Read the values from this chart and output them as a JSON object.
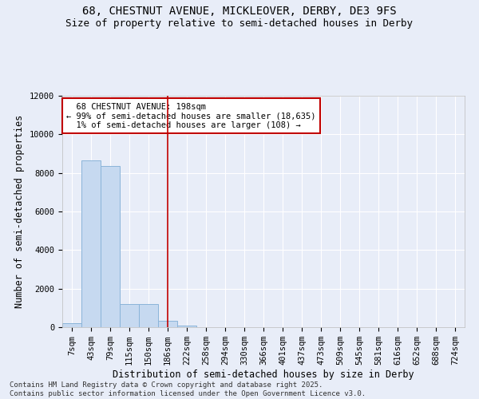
{
  "title_line1": "68, CHESTNUT AVENUE, MICKLEOVER, DERBY, DE3 9FS",
  "title_line2": "Size of property relative to semi-detached houses in Derby",
  "xlabel": "Distribution of semi-detached houses by size in Derby",
  "ylabel": "Number of semi-detached properties",
  "footer_line1": "Contains HM Land Registry data © Crown copyright and database right 2025.",
  "footer_line2": "Contains public sector information licensed under the Open Government Licence v3.0.",
  "categories": [
    "7sqm",
    "43sqm",
    "79sqm",
    "115sqm",
    "150sqm",
    "186sqm",
    "222sqm",
    "258sqm",
    "294sqm",
    "330sqm",
    "366sqm",
    "401sqm",
    "437sqm",
    "473sqm",
    "509sqm",
    "545sqm",
    "581sqm",
    "616sqm",
    "652sqm",
    "688sqm",
    "724sqm"
  ],
  "values": [
    200,
    8650,
    8350,
    1200,
    1200,
    350,
    100,
    0,
    0,
    0,
    0,
    0,
    0,
    0,
    0,
    0,
    0,
    0,
    0,
    0,
    0
  ],
  "bar_color": "#c6d9f0",
  "bar_edge_color": "#8ab4d9",
  "annotation_line1": "  68 CHESTNUT AVENUE: 198sqm  ",
  "annotation_line2": "← 99% of semi-detached houses are smaller (18,635)",
  "annotation_line3": "  1% of semi-detached houses are larger (108) →",
  "vline_x_index": 5.0,
  "vline_color": "#c00000",
  "annotation_box_color": "#c00000",
  "annotation_box_facecolor": "#ffffff",
  "ylim": [
    0,
    12000
  ],
  "yticks": [
    0,
    2000,
    4000,
    6000,
    8000,
    10000,
    12000
  ],
  "background_color": "#e8edf8",
  "plot_bg_color": "#e8edf8",
  "grid_color": "#ffffff",
  "title_fontsize": 10,
  "subtitle_fontsize": 9,
  "axis_label_fontsize": 8.5,
  "tick_fontsize": 7.5,
  "annotation_fontsize": 7.5,
  "footer_fontsize": 6.5
}
